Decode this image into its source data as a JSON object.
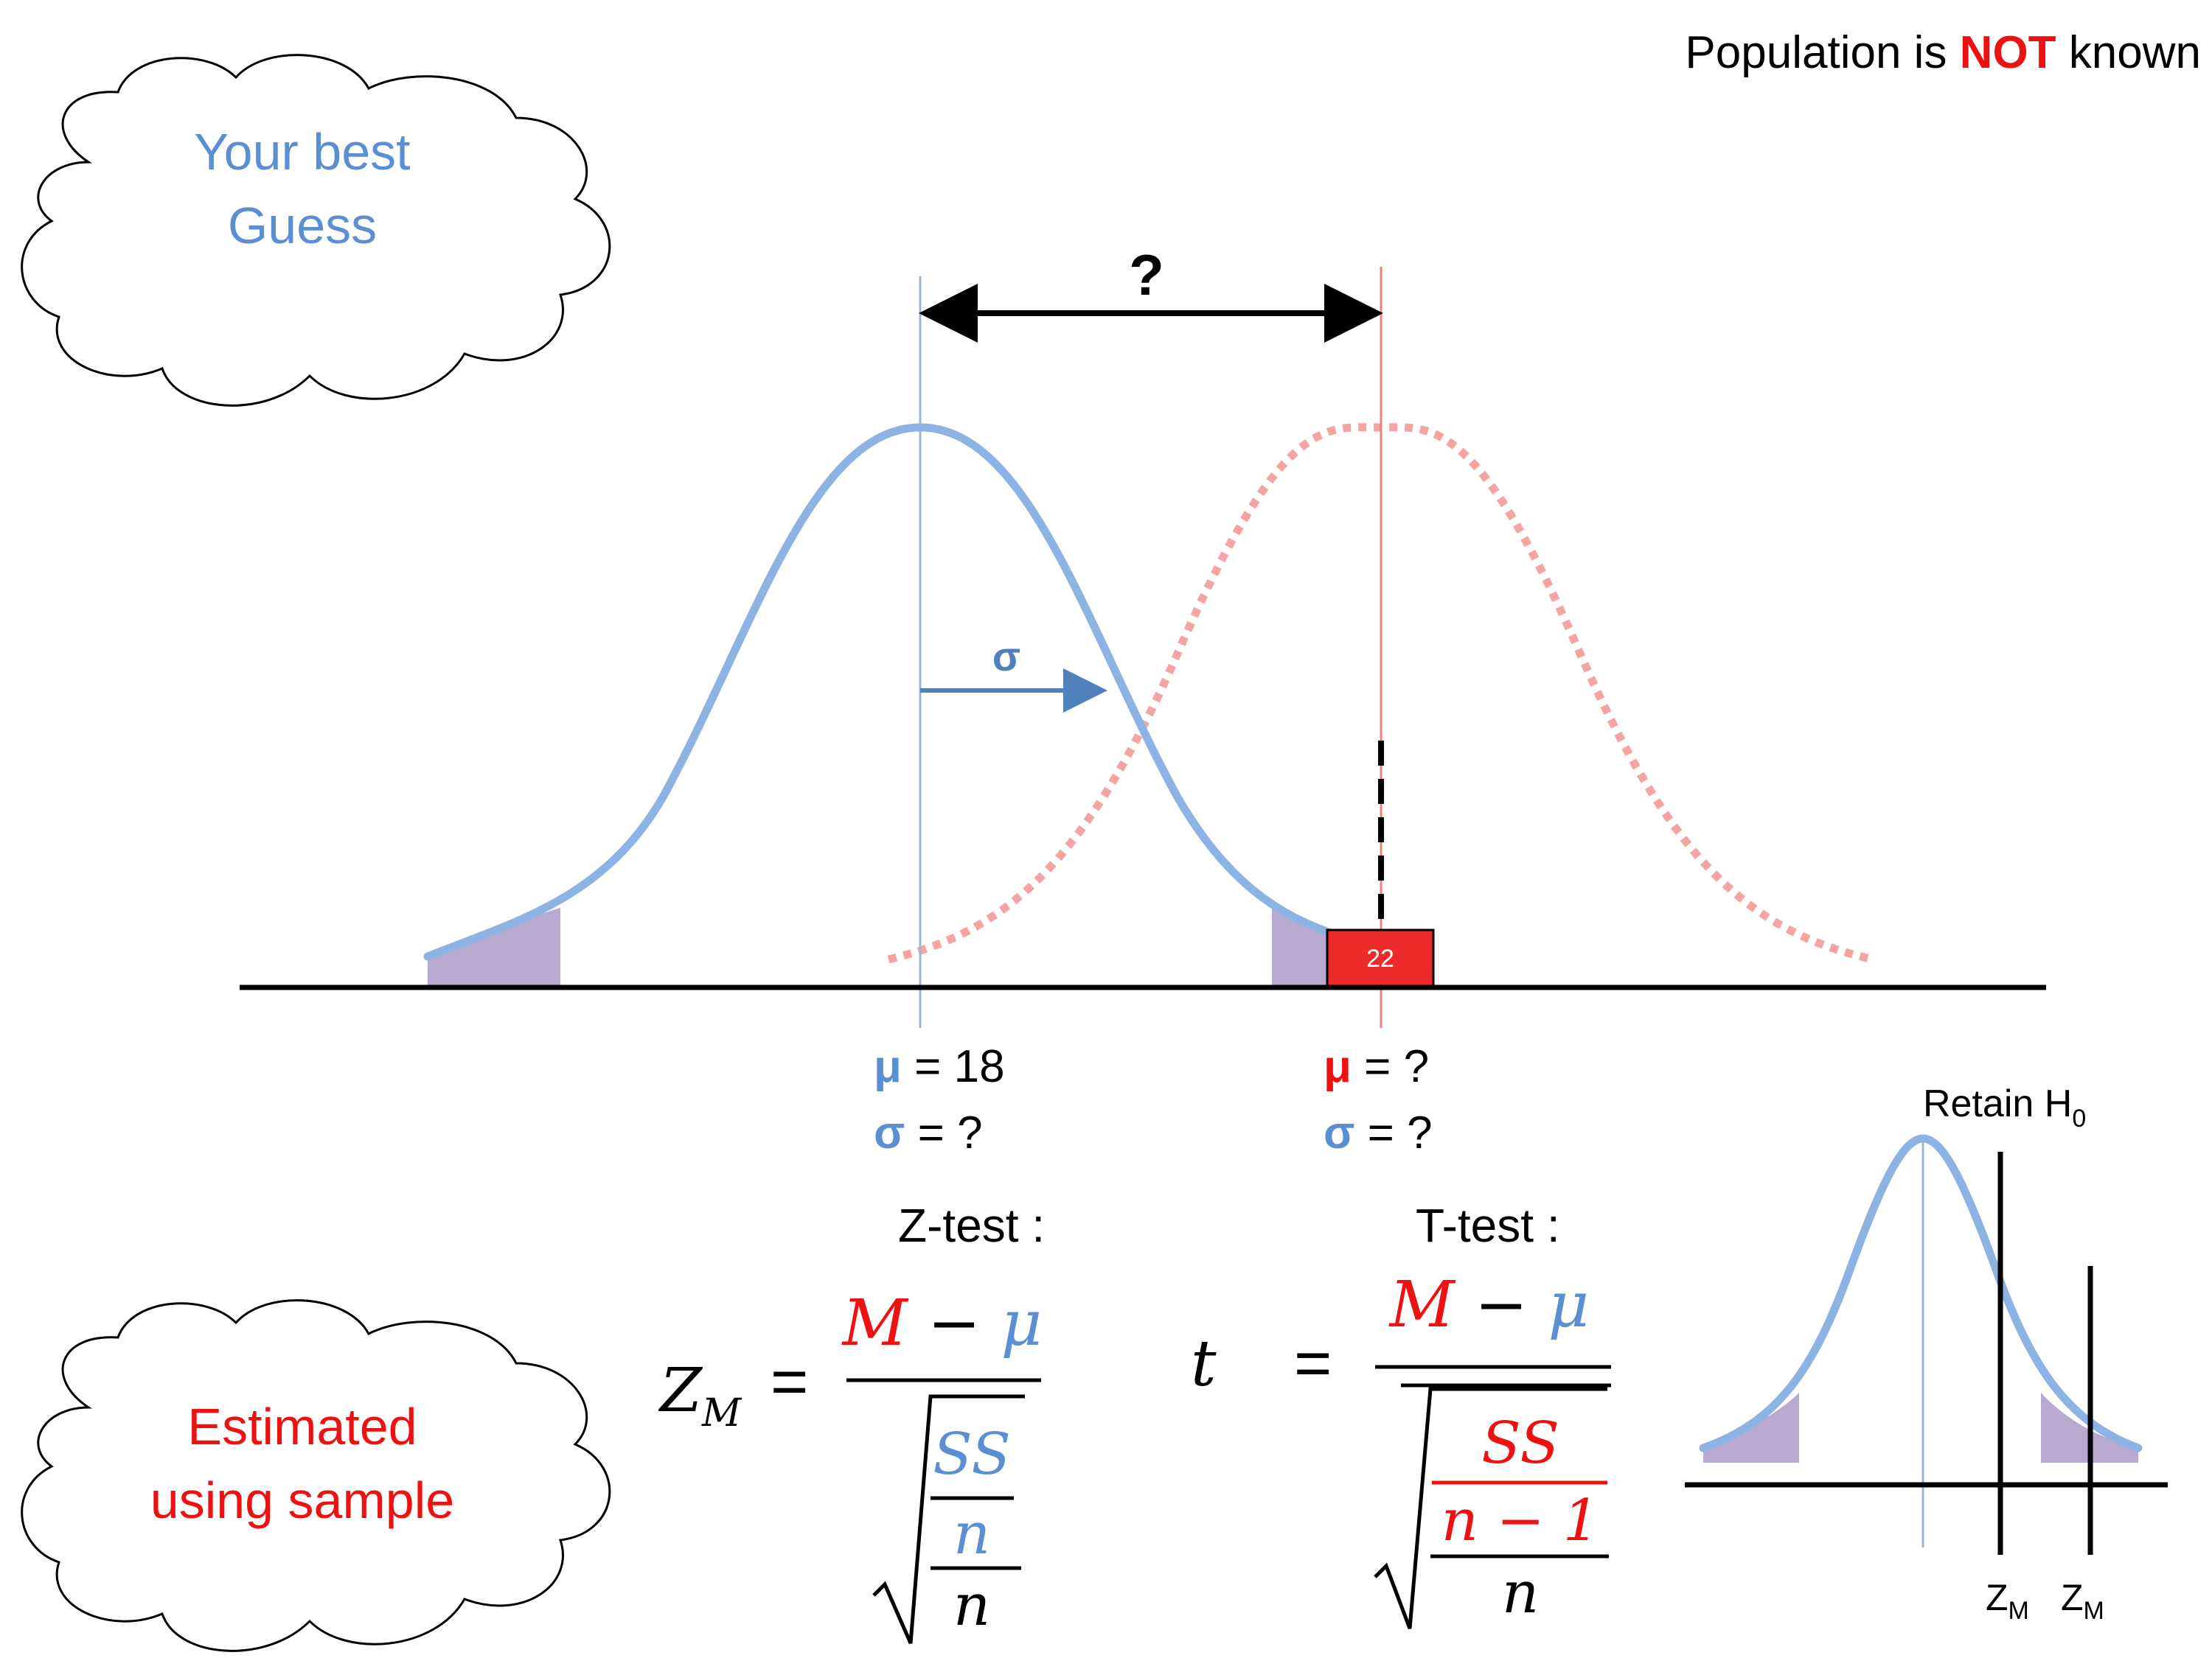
{
  "header": {
    "prefix": "Population is ",
    "highlight": "NOT",
    "suffix": " known"
  },
  "clouds": {
    "top_line1": "Your best",
    "top_line2": "Guess",
    "bottom_line1": "Estimated",
    "bottom_line2": "using sample"
  },
  "main_diagram": {
    "distance_label": "?",
    "sigma_label": "σ",
    "sample_value": "22"
  },
  "parameters": {
    "known": {
      "mu_symbol": "μ",
      "mu_text": " = 18",
      "sigma_symbol": "σ",
      "sigma_text": " = ?"
    },
    "unknown": {
      "mu_symbol": "μ",
      "mu_text": " = ?",
      "sigma_symbol": "σ",
      "sigma_text": " = ?"
    }
  },
  "formulas": {
    "z_test_label": "Z-test :",
    "t_test_label": "T-test :",
    "z_lhs_main": "Z",
    "z_lhs_sub": "M",
    "t_lhs": "t",
    "equals": "=",
    "num_M": "M",
    "num_minus": " − ",
    "num_mu": "μ",
    "ss": "SS",
    "n": "n",
    "n_minus_1": "n − 1",
    "sqrt_sign": "√"
  },
  "inset": {
    "title_main": "Retain H",
    "title_sub": "0",
    "zm1_main": "Z",
    "zm1_sub": "M",
    "zm2_main": "Z",
    "zm2_sub": "M"
  },
  "colors": {
    "blue": "#5b8fd4",
    "blue_curve": "#8db3e2",
    "red": "#ee1111",
    "red_curve": "#f6a3a3",
    "shade": "#b8a9d0",
    "black": "#000000"
  }
}
